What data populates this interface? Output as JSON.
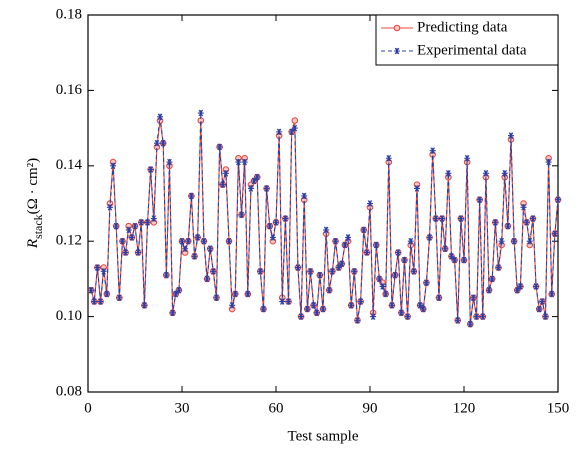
{
  "chart_data": {
    "type": "line",
    "xlabel": "Test sample",
    "ylabel": {
      "symbol": "R",
      "subscript": "stack",
      "unit": "(Ω · cm²)"
    },
    "x": [
      1,
      2,
      3,
      4,
      5,
      6,
      7,
      8,
      9,
      10,
      11,
      12,
      13,
      14,
      15,
      16,
      17,
      18,
      19,
      20,
      21,
      22,
      23,
      24,
      25,
      26,
      27,
      28,
      29,
      30,
      31,
      32,
      33,
      34,
      35,
      36,
      37,
      38,
      39,
      40,
      41,
      42,
      43,
      44,
      45,
      46,
      47,
      48,
      49,
      50,
      51,
      52,
      53,
      54,
      55,
      56,
      57,
      58,
      59,
      60,
      61,
      62,
      63,
      64,
      65,
      66,
      67,
      68,
      69,
      70,
      71,
      72,
      73,
      74,
      75,
      76,
      77,
      78,
      79,
      80,
      81,
      82,
      83,
      84,
      85,
      86,
      87,
      88,
      89,
      90,
      91,
      92,
      93,
      94,
      95,
      96,
      97,
      98,
      99,
      100,
      101,
      102,
      103,
      104,
      105,
      106,
      107,
      108,
      109,
      110,
      111,
      112,
      113,
      114,
      115,
      116,
      117,
      118,
      119,
      120,
      121,
      122,
      123,
      124,
      125,
      126,
      127,
      128,
      129,
      130,
      131,
      132,
      133,
      134,
      135,
      136,
      137,
      138,
      139,
      140,
      141,
      142,
      143,
      144,
      145,
      146,
      147,
      148,
      149,
      150
    ],
    "series": [
      {
        "name": "Predicting data",
        "color": "#e8443a",
        "marker": "circle",
        "dash": false,
        "values": [
          0.107,
          0.104,
          0.113,
          0.104,
          0.113,
          0.106,
          0.13,
          0.141,
          0.124,
          0.105,
          0.12,
          0.117,
          0.124,
          0.121,
          0.124,
          0.117,
          0.125,
          0.103,
          0.125,
          0.139,
          0.125,
          0.145,
          0.152,
          0.146,
          0.111,
          0.14,
          0.101,
          0.106,
          0.107,
          0.12,
          0.117,
          0.12,
          0.132,
          0.116,
          0.121,
          0.152,
          0.12,
          0.11,
          0.118,
          0.112,
          0.105,
          0.145,
          0.135,
          0.139,
          0.12,
          0.102,
          0.106,
          0.142,
          0.127,
          0.142,
          0.106,
          0.135,
          0.136,
          0.137,
          0.112,
          0.102,
          0.134,
          0.124,
          0.12,
          0.125,
          0.148,
          0.105,
          0.126,
          0.104,
          0.149,
          0.152,
          0.113,
          0.1,
          0.131,
          0.102,
          0.112,
          0.103,
          0.101,
          0.111,
          0.102,
          0.122,
          0.107,
          0.112,
          0.12,
          0.113,
          0.114,
          0.119,
          0.12,
          0.103,
          0.112,
          0.099,
          0.104,
          0.123,
          0.117,
          0.129,
          0.101,
          0.119,
          0.11,
          0.109,
          0.106,
          0.141,
          0.103,
          0.111,
          0.117,
          0.101,
          0.115,
          0.1,
          0.119,
          0.112,
          0.135,
          0.103,
          0.102,
          0.109,
          0.121,
          0.143,
          0.126,
          0.105,
          0.126,
          0.118,
          0.137,
          0.116,
          0.115,
          0.099,
          0.126,
          0.115,
          0.141,
          0.098,
          0.105,
          0.1,
          0.131,
          0.1,
          0.137,
          0.107,
          0.11,
          0.125,
          0.113,
          0.119,
          0.137,
          0.124,
          0.147,
          0.12,
          0.107,
          0.108,
          0.13,
          0.125,
          0.119,
          0.126,
          0.108,
          0.102,
          0.104,
          0.1,
          0.142,
          0.106,
          0.122,
          0.131
        ]
      },
      {
        "name": "Experimental data",
        "color": "#2b3fa6",
        "marker": "asterisk",
        "dash": true,
        "values": [
          0.107,
          0.104,
          0.113,
          0.104,
          0.112,
          0.106,
          0.129,
          0.14,
          0.124,
          0.105,
          0.12,
          0.117,
          0.123,
          0.121,
          0.124,
          0.117,
          0.125,
          0.103,
          0.125,
          0.139,
          0.126,
          0.146,
          0.153,
          0.146,
          0.111,
          0.141,
          0.101,
          0.106,
          0.107,
          0.12,
          0.118,
          0.12,
          0.132,
          0.116,
          0.121,
          0.154,
          0.12,
          0.11,
          0.118,
          0.112,
          0.105,
          0.145,
          0.135,
          0.138,
          0.12,
          0.103,
          0.106,
          0.141,
          0.127,
          0.141,
          0.106,
          0.134,
          0.136,
          0.137,
          0.112,
          0.102,
          0.134,
          0.124,
          0.121,
          0.125,
          0.149,
          0.104,
          0.126,
          0.104,
          0.149,
          0.15,
          0.113,
          0.1,
          0.132,
          0.102,
          0.112,
          0.103,
          0.101,
          0.111,
          0.102,
          0.123,
          0.107,
          0.112,
          0.12,
          0.113,
          0.114,
          0.119,
          0.121,
          0.103,
          0.112,
          0.099,
          0.104,
          0.123,
          0.117,
          0.13,
          0.1,
          0.119,
          0.11,
          0.108,
          0.106,
          0.142,
          0.103,
          0.111,
          0.117,
          0.101,
          0.115,
          0.1,
          0.12,
          0.112,
          0.134,
          0.103,
          0.102,
          0.109,
          0.121,
          0.144,
          0.126,
          0.105,
          0.126,
          0.118,
          0.138,
          0.116,
          0.115,
          0.099,
          0.126,
          0.115,
          0.142,
          0.098,
          0.105,
          0.1,
          0.131,
          0.1,
          0.138,
          0.107,
          0.11,
          0.125,
          0.113,
          0.12,
          0.138,
          0.124,
          0.148,
          0.12,
          0.107,
          0.108,
          0.129,
          0.125,
          0.12,
          0.126,
          0.108,
          0.102,
          0.104,
          0.1,
          0.141,
          0.106,
          0.122,
          0.131
        ]
      }
    ],
    "xlim": [
      0,
      150
    ],
    "xticks": [
      0,
      30,
      60,
      90,
      120,
      150
    ],
    "ylim": [
      0.08,
      0.18
    ],
    "yticks": [
      {
        "value": 0.08,
        "label": "0.08"
      },
      {
        "value": 0.1,
        "label": "0.10"
      },
      {
        "value": 0.12,
        "label": "0.12"
      },
      {
        "value": 0.14,
        "label": "0.14"
      },
      {
        "value": 0.16,
        "label": "0.16"
      },
      {
        "value": 0.18,
        "label": "0.18"
      }
    ],
    "grid": false,
    "legend": "upper right"
  }
}
